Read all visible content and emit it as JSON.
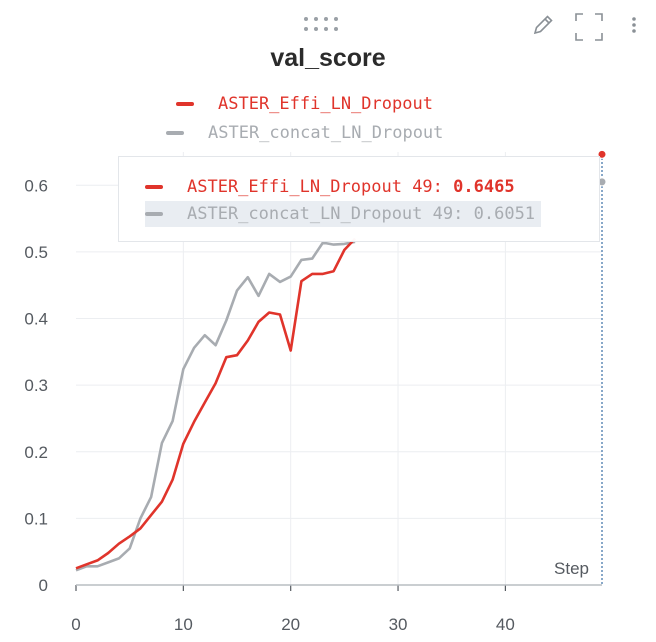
{
  "toolbar": {
    "drag_icon": "drag-dots-icon",
    "edit_icon": "pencil-icon",
    "fullscreen_icon": "fullscreen-icon",
    "menu_icon": "kebab-menu-icon"
  },
  "colors": {
    "red": "#e0342b",
    "gray": "#a8acb1",
    "axis": "#555a60",
    "grid": "#eceef1"
  },
  "chart_data": {
    "type": "line",
    "title": "val_score",
    "xlabel": "Step",
    "ylabel": "",
    "xlim": [
      0,
      49
    ],
    "ylim": [
      0,
      0.65
    ],
    "x_ticks": [
      0,
      10,
      20,
      30,
      40
    ],
    "y_ticks": [
      0,
      0.1,
      0.2,
      0.3,
      0.4,
      0.5,
      0.6
    ],
    "grid": true,
    "legend_position": "top-center",
    "series": [
      {
        "name": "ASTER_Effi_LN_Dropout",
        "color": "#e0342b",
        "x": [
          0,
          1,
          2,
          3,
          4,
          5,
          6,
          7,
          8,
          9,
          10,
          11,
          12,
          13,
          14,
          15,
          16,
          17,
          18,
          19,
          20,
          21,
          22,
          23,
          24,
          25,
          26
        ],
        "values": [
          0.025,
          0.031,
          0.037,
          0.048,
          0.062,
          0.073,
          0.085,
          0.105,
          0.125,
          0.158,
          0.212,
          0.245,
          0.274,
          0.303,
          0.342,
          0.345,
          0.367,
          0.395,
          0.409,
          0.406,
          0.352,
          0.456,
          0.467,
          0.467,
          0.471,
          0.503,
          0.52
        ]
      },
      {
        "name": "ASTER_concat_LN_Dropout",
        "color": "#a8acb1",
        "x": [
          0,
          1,
          2,
          3,
          4,
          5,
          6,
          7,
          8,
          9,
          10,
          11,
          12,
          13,
          14,
          15,
          16,
          17,
          18,
          19,
          20,
          21,
          22,
          23,
          24,
          25,
          26
        ],
        "values": [
          0.022,
          0.028,
          0.028,
          0.034,
          0.04,
          0.055,
          0.1,
          0.132,
          0.213,
          0.246,
          0.324,
          0.356,
          0.375,
          0.36,
          0.397,
          0.442,
          0.462,
          0.434,
          0.467,
          0.455,
          0.463,
          0.488,
          0.49,
          0.514,
          0.511,
          0.512,
          0.515
        ]
      }
    ],
    "tooltip": {
      "step": 49,
      "rows": [
        {
          "name": "ASTER_Effi_LN_Dropout",
          "step": "49:",
          "value": "0.6465",
          "numeric": 0.6465,
          "color": "#e0342b"
        },
        {
          "name": "ASTER_concat_LN_Dropout",
          "step": "49:",
          "value": "0.6051",
          "numeric": 0.6051,
          "color": "#a8acb1"
        }
      ]
    }
  }
}
